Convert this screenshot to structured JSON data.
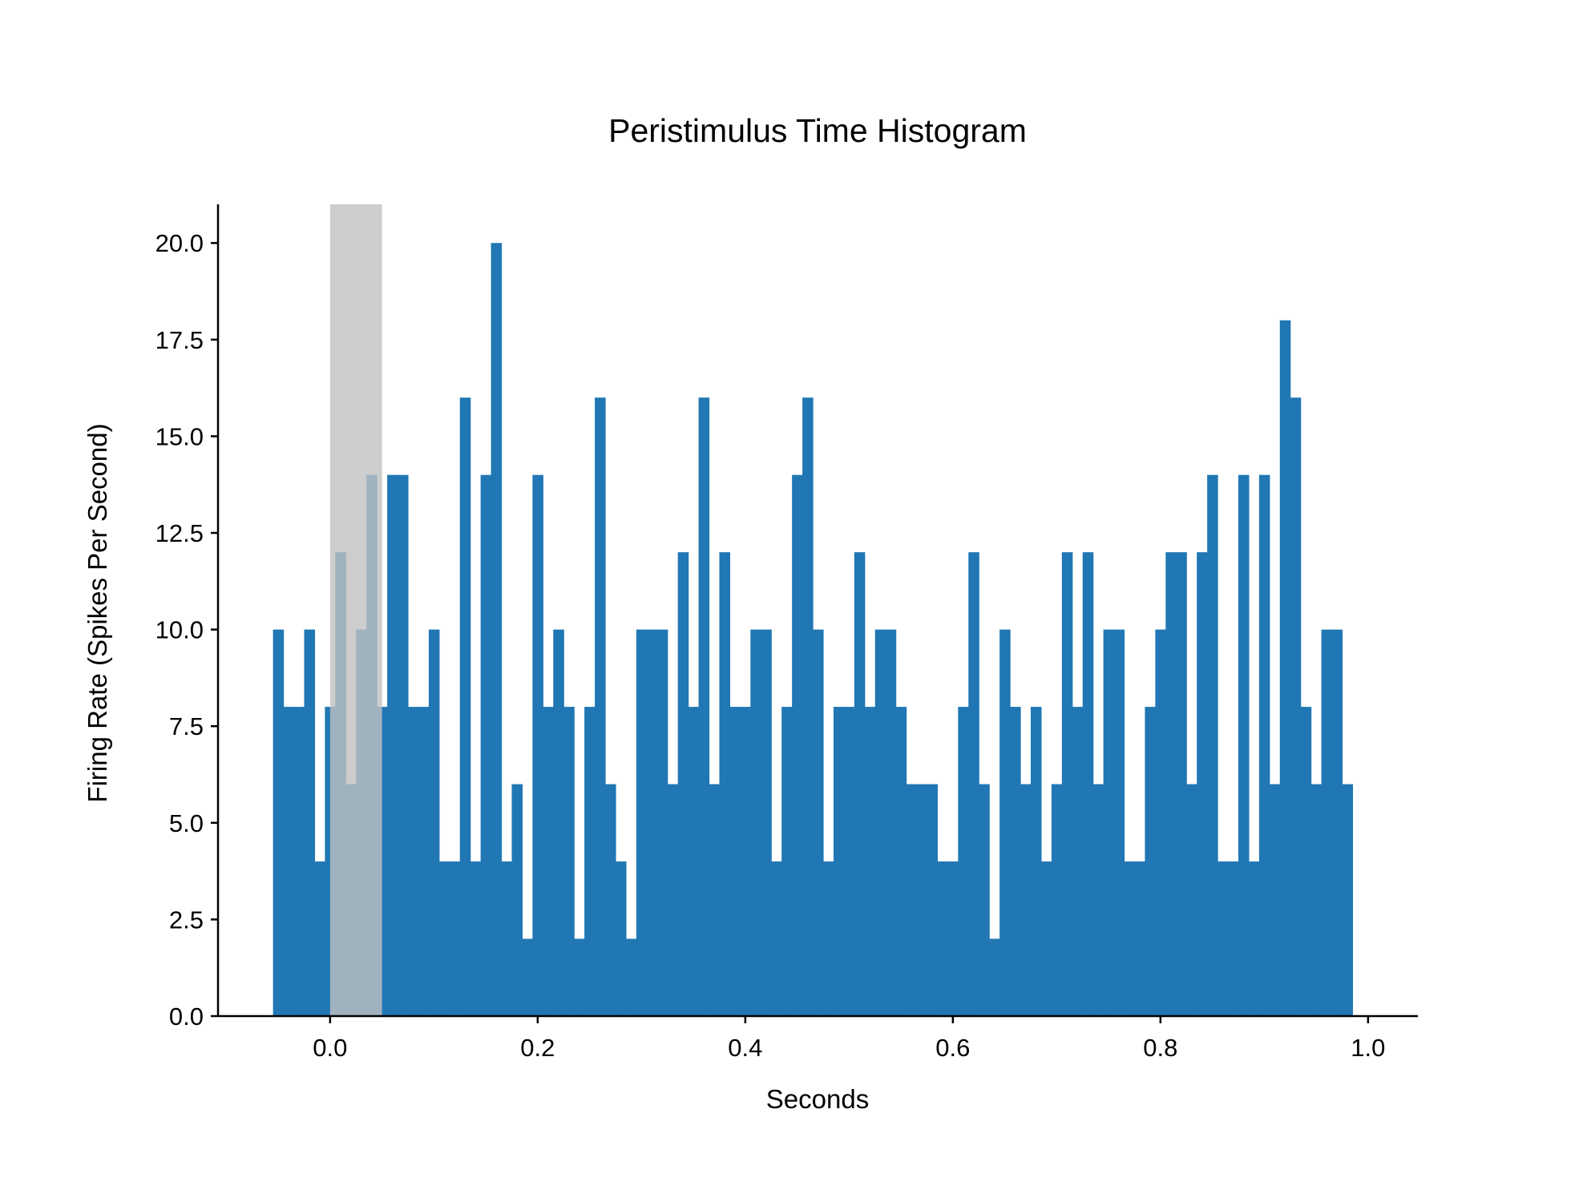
{
  "chart_data": {
    "type": "bar",
    "title": "Peristimulus Time Histogram",
    "xlabel": "Seconds",
    "ylabel": "Firing Rate (Spikes Per Second)",
    "xlim": [
      -0.108,
      1.048
    ],
    "ylim": [
      0,
      21
    ],
    "xticks": [
      0.0,
      0.2,
      0.4,
      0.6,
      0.8,
      1.0
    ],
    "xtick_labels": [
      "0.0",
      "0.2",
      "0.4",
      "0.6",
      "0.8",
      "1.0"
    ],
    "yticks": [
      0.0,
      2.5,
      5.0,
      7.5,
      10.0,
      12.5,
      15.0,
      17.5,
      20.0
    ],
    "ytick_labels": [
      "0.0",
      "2.5",
      "5.0",
      "7.5",
      "10.0",
      "12.5",
      "15.0",
      "17.5",
      "20.0"
    ],
    "bin_start": -0.055,
    "bin_width": 0.01,
    "values": [
      10,
      8,
      8,
      10,
      4,
      8,
      12,
      6,
      10,
      14,
      8,
      14,
      14,
      8,
      8,
      10,
      4,
      4,
      16,
      4,
      14,
      20,
      4,
      6,
      2,
      14,
      8,
      10,
      8,
      2,
      8,
      16,
      6,
      4,
      2,
      10,
      10,
      10,
      6,
      12,
      8,
      16,
      6,
      12,
      8,
      8,
      10,
      10,
      4,
      8,
      14,
      16,
      10,
      4,
      8,
      8,
      12,
      8,
      10,
      10,
      8,
      6,
      6,
      6,
      4,
      4,
      8,
      12,
      6,
      2,
      10,
      8,
      6,
      8,
      4,
      6,
      12,
      8,
      12,
      6,
      10,
      10,
      4,
      4,
      8,
      10,
      12,
      12,
      6,
      12,
      14,
      4,
      4,
      14,
      4,
      14,
      6,
      18,
      16,
      8,
      6,
      10,
      10,
      6
    ],
    "stimulus_window": [
      0.0,
      0.05
    ],
    "bar_color": "#2077b4",
    "stimulus_color": "#c0c0c0",
    "grid": false,
    "legend": "none"
  }
}
